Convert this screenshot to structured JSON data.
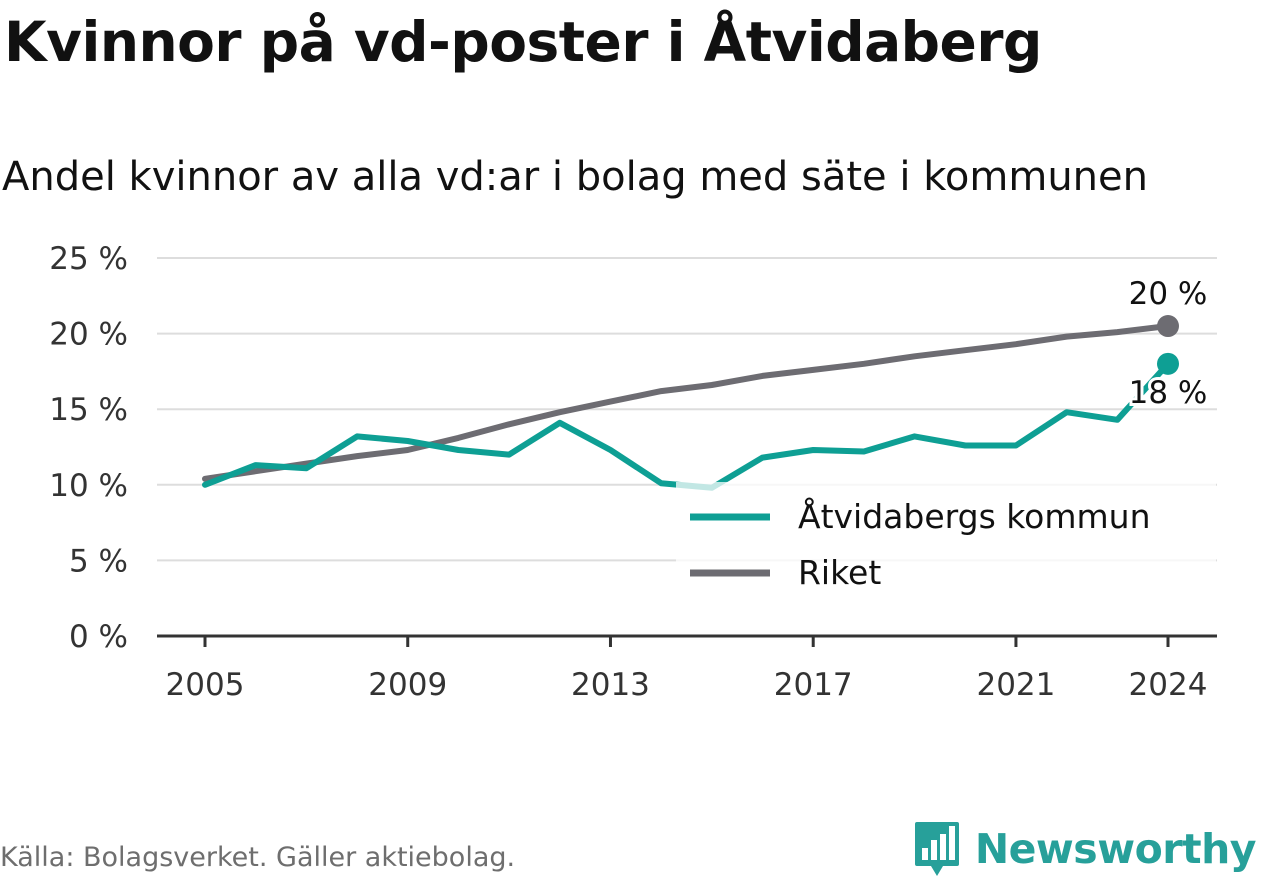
{
  "title": "Kvinnor på vd-poster i Åtvidaberg",
  "subtitle": "Andel kvinnor av alla vd:ar i bolag med säte i kommunen",
  "source": "Källa: Bolagsverket. Gäller aktiebolag.",
  "brand": "Newsworthy",
  "colors": {
    "kommun": "#0e9f94",
    "riket": "#6d6c72",
    "grid": "#dddddd",
    "axis": "#333333"
  },
  "chart_data": {
    "type": "line",
    "x": [
      2005,
      2006,
      2007,
      2008,
      2009,
      2010,
      2011,
      2012,
      2013,
      2014,
      2015,
      2016,
      2017,
      2018,
      2019,
      2020,
      2021,
      2022,
      2023,
      2024
    ],
    "series": [
      {
        "name": "Åtvidabergs kommun",
        "color": "#0e9f94",
        "values": [
          10.0,
          11.3,
          11.1,
          13.2,
          12.9,
          12.3,
          12.0,
          14.1,
          12.3,
          10.1,
          9.8,
          11.8,
          12.3,
          12.2,
          13.2,
          12.6,
          12.6,
          14.8,
          14.3,
          18.0
        ]
      },
      {
        "name": "Riket",
        "color": "#6d6c72",
        "values": [
          10.4,
          10.9,
          11.4,
          11.9,
          12.3,
          13.1,
          14.0,
          14.8,
          15.5,
          16.2,
          16.6,
          17.2,
          17.6,
          18.0,
          18.5,
          18.9,
          19.3,
          19.8,
          20.1,
          20.5
        ]
      }
    ],
    "end_labels": [
      "18 %",
      "20 %"
    ],
    "xticks": [
      "2005",
      "2009",
      "2013",
      "2017",
      "2021",
      "2024"
    ],
    "yticks": [
      "0 %",
      "5 %",
      "10 %",
      "15 %",
      "20 %",
      "25 %"
    ],
    "ylim": [
      0,
      25
    ],
    "grid": true,
    "legend": "bottom-right"
  }
}
